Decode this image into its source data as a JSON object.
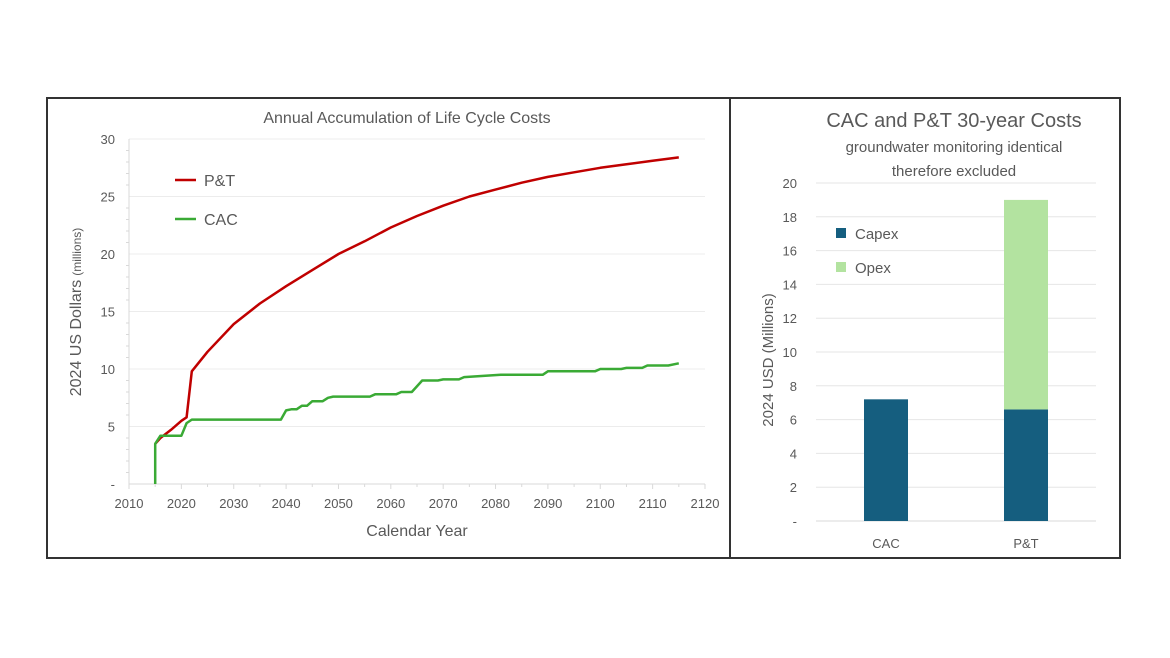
{
  "chart_data": [
    {
      "type": "line",
      "title": "Annual Accumulation of Life Cycle Costs",
      "xlabel": "Calendar Year",
      "ylabel": "2024 US Dollars",
      "ylabel_unit": "(millions)",
      "xlim": [
        2010,
        2120
      ],
      "ylim": [
        0,
        30
      ],
      "xticks": [
        "2010",
        "2020",
        "2030",
        "2040",
        "2050",
        "2060",
        "2070",
        "2080",
        "2090",
        "2100",
        "2110",
        "2120"
      ],
      "yticks": [
        "-",
        "5",
        "10",
        "15",
        "20",
        "25",
        "30"
      ],
      "grid": true,
      "legend": "top-left",
      "series": [
        {
          "name": "P&T",
          "color": "#c00000",
          "x": [
            2015,
            2016,
            2018,
            2020,
            2021,
            2022,
            2025,
            2030,
            2035,
            2040,
            2045,
            2050,
            2055,
            2060,
            2065,
            2070,
            2075,
            2080,
            2085,
            2090,
            2095,
            2100,
            2105,
            2110,
            2115
          ],
          "y": [
            3.5,
            4.0,
            4.7,
            5.5,
            5.8,
            9.8,
            11.5,
            13.9,
            15.7,
            17.2,
            18.6,
            20.0,
            21.1,
            22.3,
            23.3,
            24.2,
            25.0,
            25.6,
            26.2,
            26.7,
            27.1,
            27.5,
            27.8,
            28.1,
            28.4
          ]
        },
        {
          "name": "CAC",
          "color": "#3aaa35",
          "x": [
            2015,
            2015,
            2016,
            2020,
            2021,
            2022,
            2039,
            2040,
            2041,
            2042,
            2043,
            2044,
            2045,
            2047,
            2048,
            2049,
            2056,
            2057,
            2061,
            2062,
            2064,
            2066,
            2069,
            2070,
            2073,
            2074,
            2081,
            2089,
            2090,
            2099,
            2100,
            2104,
            2105,
            2108,
            2109,
            2113,
            2115
          ],
          "y": [
            0,
            3.5,
            4.2,
            4.2,
            5.3,
            5.6,
            5.6,
            6.4,
            6.5,
            6.5,
            6.8,
            6.8,
            7.2,
            7.2,
            7.5,
            7.6,
            7.6,
            7.8,
            7.8,
            8.0,
            8.0,
            9.0,
            9.0,
            9.1,
            9.1,
            9.3,
            9.5,
            9.5,
            9.8,
            9.8,
            10.0,
            10.0,
            10.1,
            10.1,
            10.3,
            10.3,
            10.5
          ]
        }
      ]
    },
    {
      "type": "bar",
      "stacked": true,
      "title": "CAC and P&T 30-year Costs",
      "subtitle": [
        "groundwater monitoring identical",
        "therefore excluded"
      ],
      "ylabel": "2024 USD (Millions)",
      "ylim": [
        0,
        20
      ],
      "yticks": [
        "-",
        "2",
        "4",
        "6",
        "8",
        "10",
        "12",
        "14",
        "16",
        "18",
        "20"
      ],
      "grid": true,
      "legend": "top-left",
      "categories": [
        "CAC",
        "P&T"
      ],
      "series": [
        {
          "name": "Capex",
          "color": "#155e7f",
          "values": [
            7.2,
            6.6
          ]
        },
        {
          "name": "Opex",
          "color": "#b3e3a0",
          "values": [
            0,
            12.4
          ]
        }
      ]
    }
  ]
}
